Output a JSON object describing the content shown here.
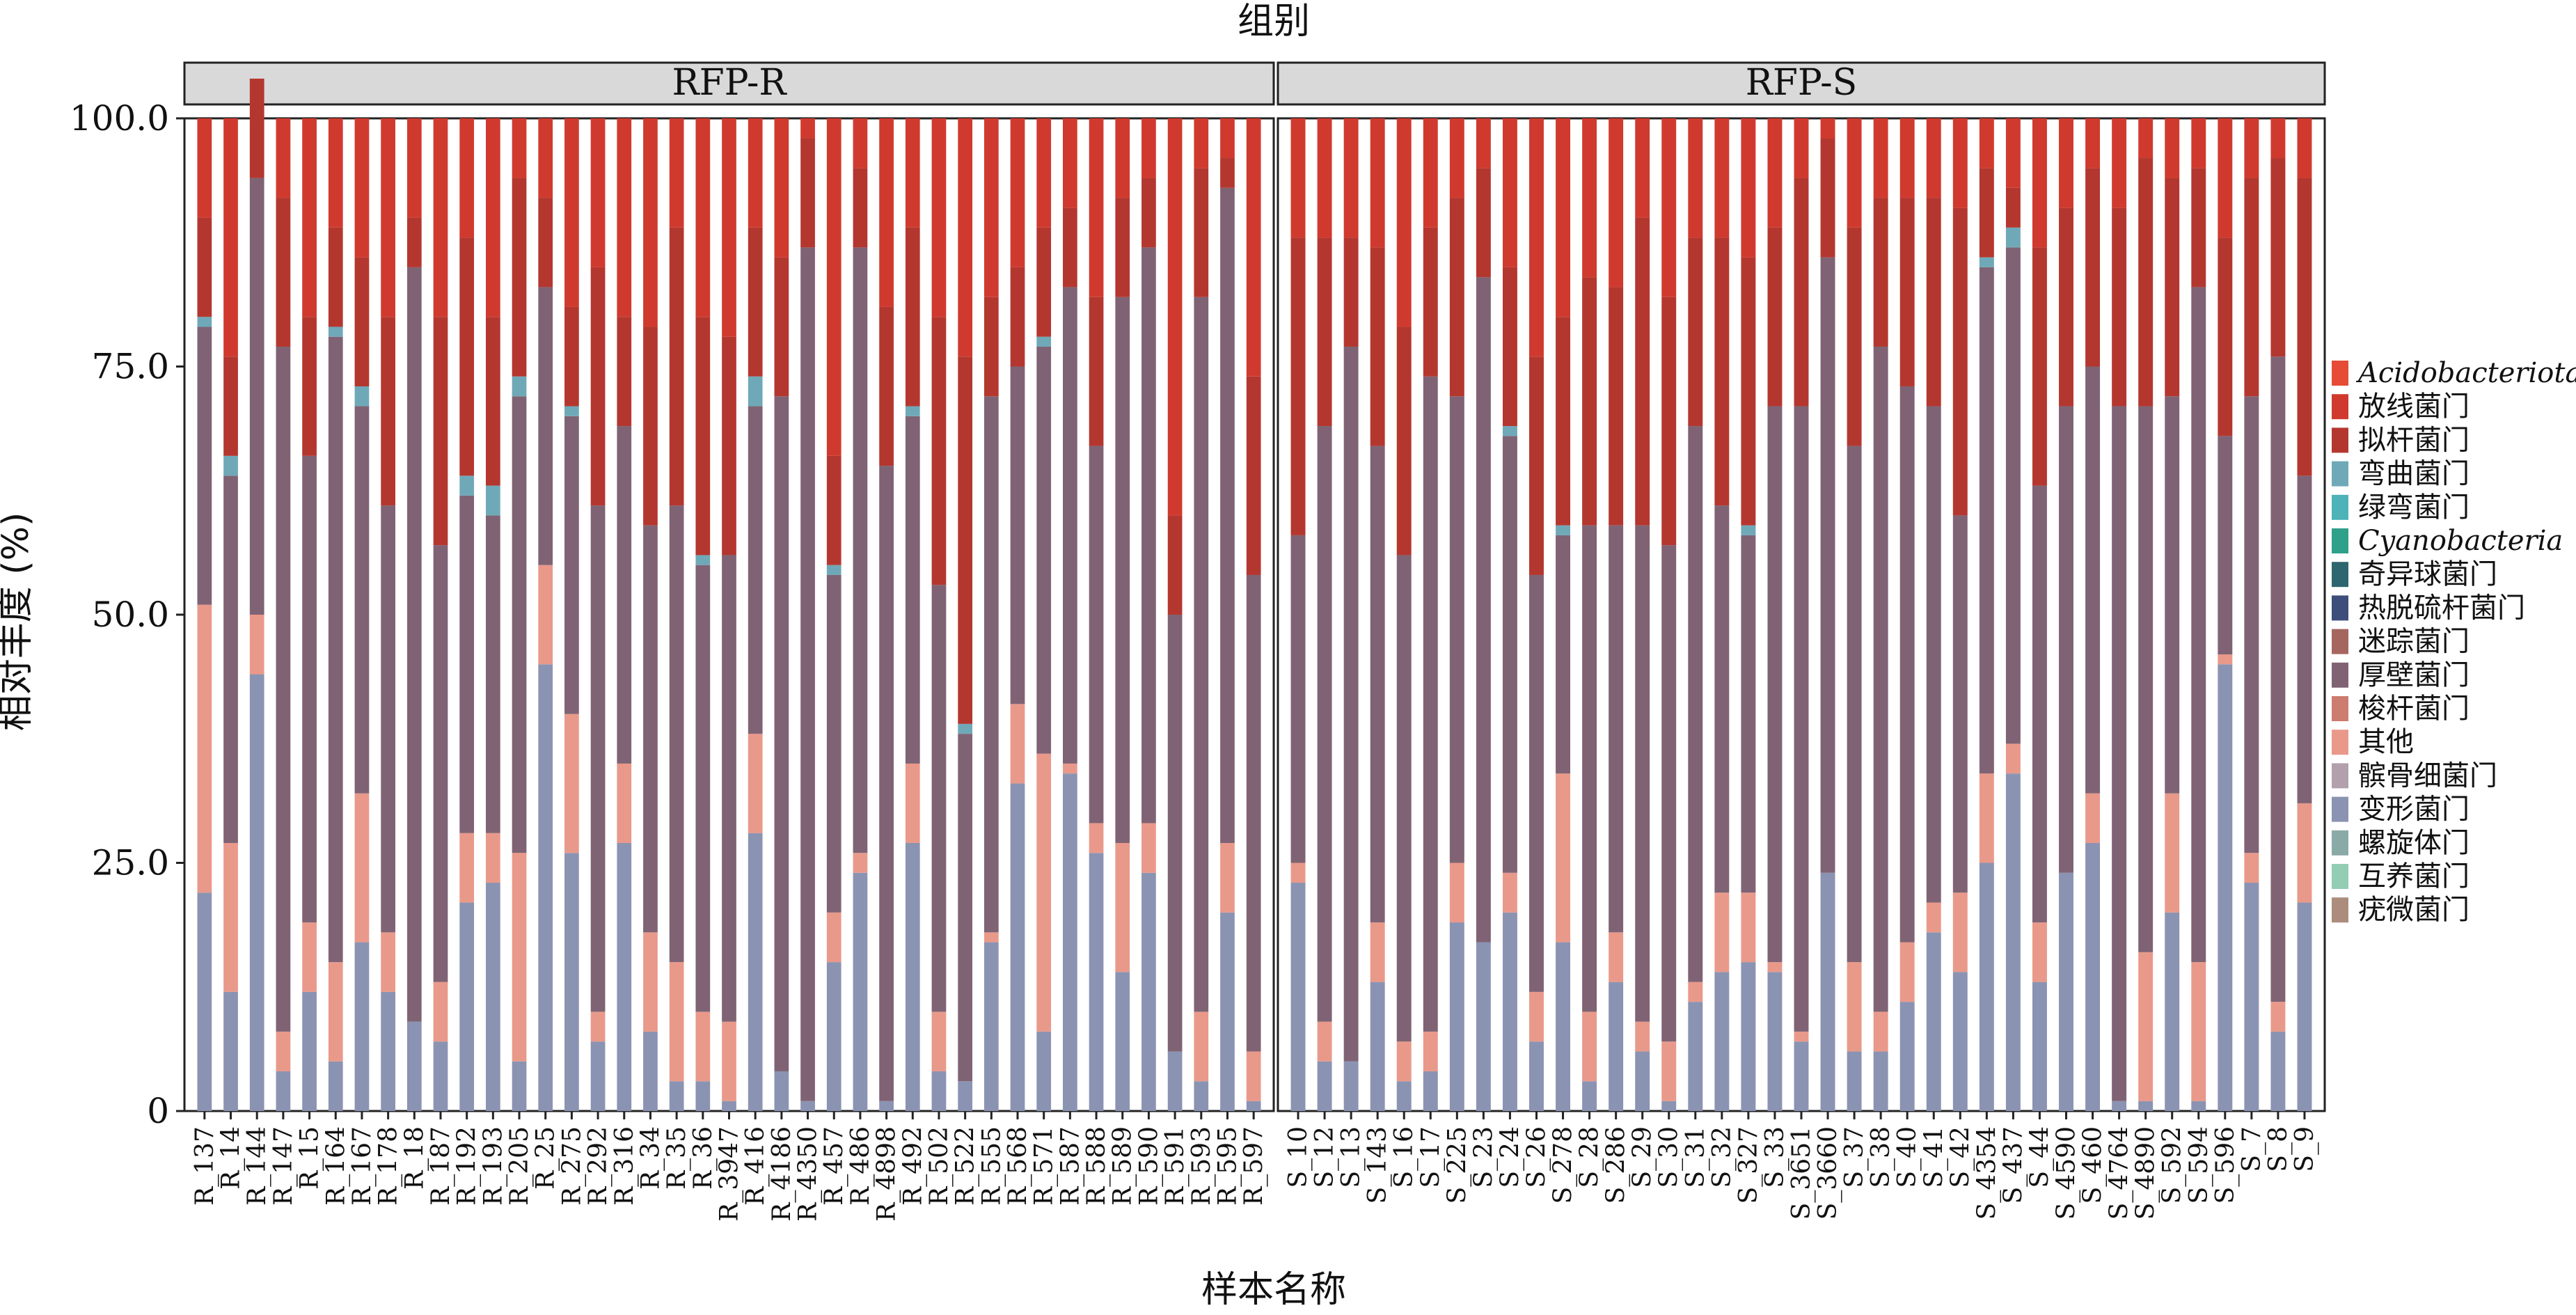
{
  "chart_data": {
    "type": "bar",
    "stacked": true,
    "title": "组别",
    "xlabel": "样本名称",
    "ylabel": "相对丰度 (%)",
    "ylim": [
      0,
      100
    ],
    "yticks": [
      "0",
      "25.0",
      "50.0",
      "75.0",
      "100.0"
    ],
    "grid": false,
    "legend_position": "right",
    "legend": [
      {
        "name": "Acidobacteriota",
        "italic": true,
        "color": "#E64B35"
      },
      {
        "name": "放线菌门",
        "italic": false,
        "color": "#D03A2E"
      },
      {
        "name": "拟杆菌门",
        "italic": false,
        "color": "#B4372F"
      },
      {
        "name": "弯曲菌门",
        "italic": false,
        "color": "#6FA9B8"
      },
      {
        "name": "绿弯菌门",
        "italic": false,
        "color": "#4DB3B8"
      },
      {
        "name": "Cyanobacteria",
        "italic": true,
        "color": "#2FA08A"
      },
      {
        "name": "奇异球菌门",
        "italic": false,
        "color": "#2E6670"
      },
      {
        "name": "热脱硫杆菌门",
        "italic": false,
        "color": "#3D4E7A"
      },
      {
        "name": "迷踪菌门",
        "italic": false,
        "color": "#A5665F"
      },
      {
        "name": "厚壁菌门",
        "italic": false,
        "color": "#7F6374"
      },
      {
        "name": "梭杆菌门",
        "italic": false,
        "color": "#CD7C70"
      },
      {
        "name": "其他",
        "italic": false,
        "color": "#E9998A"
      },
      {
        "name": "髌骨细菌门",
        "italic": false,
        "color": "#B2A0AD"
      },
      {
        "name": "变形菌门",
        "italic": false,
        "color": "#8B93B2"
      },
      {
        "name": "螺旋体门",
        "italic": false,
        "color": "#8AAAA7"
      },
      {
        "name": "互养菌门",
        "italic": false,
        "color": "#92CDB4"
      },
      {
        "name": "疣微菌门",
        "italic": false,
        "color": "#AC8D7D"
      }
    ],
    "stack_series": [
      "变形菌门",
      "其他",
      "厚壁菌门",
      "弯曲菌门",
      "拟杆菌门",
      "放线菌门"
    ],
    "panels": [
      {
        "label": "RFP-R",
        "samples": [
          "R_137",
          "R_14",
          "R_144",
          "R_147",
          "R_15",
          "R_164",
          "R_167",
          "R_178",
          "R_18",
          "R_187",
          "R_192",
          "R_193",
          "R_205",
          "R_25",
          "R_275",
          "R_292",
          "R_316",
          "R_34",
          "R_35",
          "R_36",
          "R_3947",
          "R_416",
          "R_4186",
          "R_4350",
          "R_457",
          "R_486",
          "R_4898",
          "R_492",
          "R_502",
          "R_522",
          "R_555",
          "R_568",
          "R_571",
          "R_587",
          "R_588",
          "R_589",
          "R_590",
          "R_591",
          "R_593",
          "R_595",
          "R_597"
        ],
        "series": [
          {
            "name": "变形菌门",
            "values": [
              22,
              12,
              44,
              4,
              12,
              5,
              17,
              12,
              9,
              7,
              21,
              23,
              5,
              45,
              26,
              7,
              27,
              8,
              3,
              3,
              1,
              28,
              4,
              1,
              15,
              24,
              1,
              27,
              4,
              3,
              17,
              33,
              8,
              34,
              26,
              14,
              24,
              6,
              3,
              20,
              1
            ]
          },
          {
            "name": "其他",
            "values": [
              29,
              15,
              6,
              4,
              7,
              10,
              15,
              6,
              0,
              6,
              7,
              5,
              21,
              10,
              14,
              3,
              8,
              10,
              12,
              7,
              8,
              10,
              0,
              0,
              5,
              2,
              0,
              8,
              6,
              0,
              1,
              8,
              28,
              1,
              3,
              13,
              5,
              0,
              7,
              7,
              5
            ]
          },
          {
            "name": "厚壁菌门",
            "values": [
              28,
              37,
              44,
              69,
              47,
              63,
              39,
              43,
              76,
              44,
              34,
              32,
              46,
              28,
              30,
              51,
              34,
              41,
              46,
              45,
              47,
              33,
              68,
              86,
              34,
              61,
              64,
              35,
              43,
              35,
              54,
              34,
              41,
              48,
              38,
              55,
              58,
              44,
              72,
              66,
              48
            ]
          },
          {
            "name": "弯曲菌门",
            "values": [
              1,
              2,
              0,
              0,
              0,
              1,
              2,
              0,
              0,
              0,
              2,
              3,
              2,
              0,
              1,
              0,
              0,
              0,
              0,
              1,
              0,
              3,
              0,
              0,
              1,
              0,
              0,
              1,
              0,
              1,
              0,
              0,
              1,
              0,
              0,
              0,
              0,
              0,
              0,
              0,
              0
            ]
          },
          {
            "name": "拟杆菌门",
            "values": [
              10,
              10,
              10,
              15,
              14,
              10,
              13,
              19,
              5,
              23,
              24,
              17,
              20,
              9,
              10,
              24,
              11,
              20,
              28,
              24,
              22,
              15,
              14,
              11,
              11,
              8,
              16,
              18,
              27,
              37,
              10,
              10,
              11,
              8,
              15,
              10,
              7,
              10,
              13,
              3,
              20
            ]
          },
          {
            "name": "放线菌门",
            "values": [
              10,
              24,
              0,
              8,
              20,
              11,
              14,
              20,
              10,
              20,
              12,
              20,
              6,
              8,
              19,
              15,
              20,
              21,
              11,
              20,
              22,
              11,
              14,
              2,
              34,
              5,
              19,
              11,
              20,
              24,
              18,
              15,
              11,
              9,
              18,
              8,
              6,
              40,
              5,
              4,
              26
            ]
          }
        ]
      },
      {
        "label": "RFP-S",
        "samples": [
          "S_10",
          "S_12",
          "S_13",
          "S_143",
          "S_16",
          "S_17",
          "S_225",
          "S_23",
          "S_24",
          "S_26",
          "S_278",
          "S_28",
          "S_286",
          "S_29",
          "S_30",
          "S_31",
          "S_32",
          "S_327",
          "S_33",
          "S_3651",
          "S_3660",
          "S_37",
          "S_38",
          "S_40",
          "S_41",
          "S_42",
          "S_4354",
          "S_437",
          "S_44",
          "S_4590",
          "S_460",
          "S_4764",
          "S_4890",
          "S_592",
          "S_594",
          "S_596",
          "S_7",
          "S_8",
          "S_9"
        ],
        "series": [
          {
            "name": "变形菌门",
            "values": [
              23,
              5,
              5,
              13,
              3,
              4,
              19,
              17,
              20,
              7,
              17,
              3,
              13,
              6,
              1,
              11,
              14,
              15,
              14,
              7,
              24,
              6,
              6,
              11,
              18,
              14,
              25,
              34,
              13,
              24,
              27,
              1,
              1,
              20,
              1,
              45,
              23,
              8,
              21
            ]
          },
          {
            "name": "其他",
            "values": [
              2,
              4,
              0,
              6,
              4,
              4,
              6,
              0,
              4,
              5,
              17,
              7,
              5,
              3,
              6,
              2,
              8,
              7,
              1,
              1,
              0,
              9,
              4,
              6,
              3,
              8,
              9,
              3,
              6,
              0,
              5,
              0,
              15,
              12,
              14,
              1,
              3,
              3,
              10
            ]
          },
          {
            "name": "厚壁菌门",
            "values": [
              33,
              60,
              72,
              48,
              49,
              66,
              47,
              67,
              44,
              42,
              24,
              49,
              41,
              50,
              50,
              56,
              39,
              36,
              56,
              63,
              62,
              52,
              67,
              56,
              50,
              38,
              51,
              50,
              44,
              47,
              43,
              70,
              55,
              40,
              68,
              22,
              46,
              65,
              33
            ]
          },
          {
            "name": "弯曲菌门",
            "values": [
              0,
              0,
              0,
              0,
              0,
              0,
              0,
              0,
              1,
              0,
              1,
              0,
              0,
              0,
              0,
              0,
              0,
              1,
              0,
              0,
              0,
              0,
              0,
              0,
              0,
              0,
              1,
              2,
              0,
              0,
              0,
              0,
              0,
              0,
              0,
              0,
              0,
              0,
              0
            ]
          },
          {
            "name": "拟杆菌门",
            "values": [
              30,
              19,
              11,
              20,
              23,
              15,
              20,
              11,
              16,
              22,
              21,
              25,
              24,
              31,
              25,
              19,
              27,
              27,
              18,
              23,
              12,
              22,
              15,
              19,
              21,
              31,
              9,
              4,
              24,
              20,
              20,
              20,
              25,
              22,
              12,
              20,
              22,
              20,
              30
            ]
          },
          {
            "name": "放线菌门",
            "values": [
              12,
              12,
              12,
              13,
              21,
              11,
              8,
              5,
              15,
              24,
              20,
              16,
              17,
              10,
              18,
              12,
              12,
              14,
              11,
              6,
              2,
              11,
              8,
              8,
              8,
              9,
              5,
              7,
              13,
              9,
              5,
              9,
              4,
              6,
              5,
              12,
              6,
              4,
              6
            ]
          }
        ]
      }
    ]
  }
}
